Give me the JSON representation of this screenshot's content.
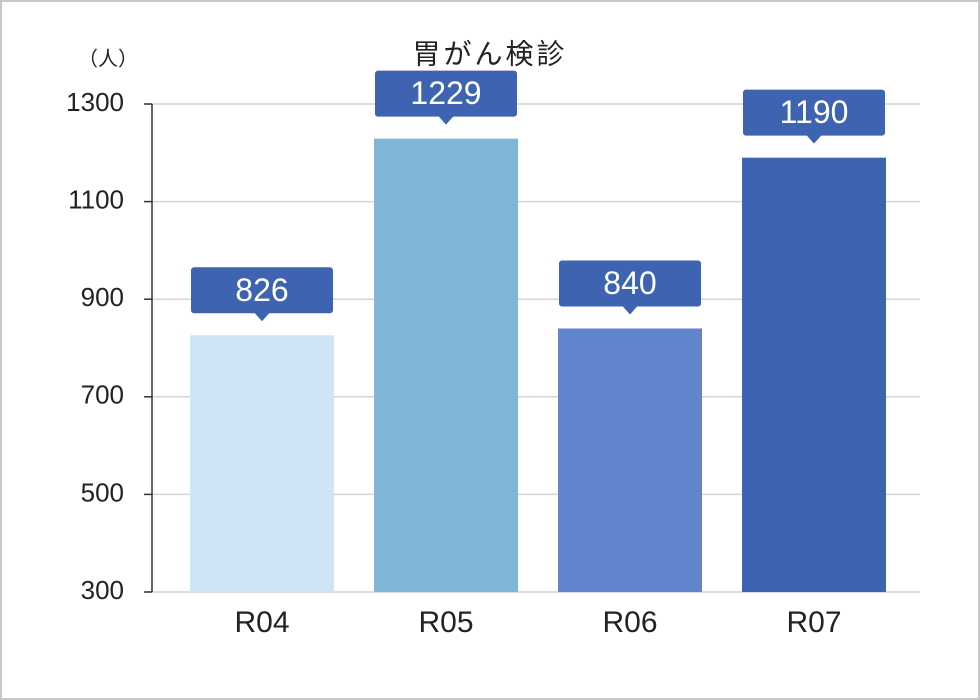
{
  "chart_data": {
    "type": "bar",
    "title": "胃がん検診",
    "y_unit": "（人）",
    "categories": [
      "R04",
      "R05",
      "R06",
      "R07"
    ],
    "values": [
      826,
      1229,
      840,
      1190
    ],
    "colors": [
      "#cde5f5",
      "#7fb6d8",
      "#6185cc",
      "#3d63b1"
    ],
    "label_color": "#3d63b1",
    "ylim": [
      300,
      1300
    ],
    "yticks": [
      300,
      500,
      700,
      900,
      1100,
      1300
    ],
    "grid": true
  }
}
